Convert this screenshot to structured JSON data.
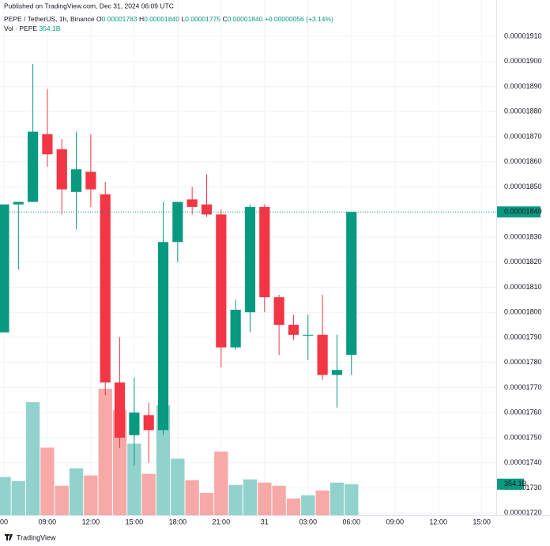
{
  "header": {
    "published": "Published on TradingView.com, Dec 31, 2024 06:09 UTC"
  },
  "footer": {
    "brand": "TradingView"
  },
  "chart_data": {
    "type": "candlestick",
    "legend": {
      "symbol": "PEPE / TetherUS, 1h, Binance",
      "ohlc": [
        {
          "label": "O",
          "value": "0.00001783"
        },
        {
          "label": "H",
          "value": "0.00001840"
        },
        {
          "label": "L",
          "value": "0.00001775"
        },
        {
          "label": "C",
          "value": "0.00001840"
        }
      ],
      "change": "+0.00000056 (+3.14%)",
      "volume_name": "Vol · PEPE",
      "volume_value": "354.1B"
    },
    "x": [
      6,
      7,
      8,
      9,
      10,
      11,
      12,
      13,
      14,
      15,
      16,
      17,
      18,
      19,
      20,
      21,
      22,
      23,
      24,
      25,
      26,
      27,
      28,
      29,
      30
    ],
    "open": [
      1.792e-05,
      1.843e-05,
      1.844e-05,
      1.871e-05,
      1.865e-05,
      1.848e-05,
      1.856e-05,
      1.847e-05,
      1.772e-05,
      1.751e-05,
      1.759e-05,
      1.753e-05,
      1.828e-05,
      1.845e-05,
      1.843e-05,
      1.839e-05,
      1.786e-05,
      1.8e-05,
      1.842e-05,
      1.806e-05,
      1.795e-05,
      1.791e-05,
      1.791e-05,
      1.775e-05,
      1.783e-05
    ],
    "high": [
      1.843e-05,
      1.844e-05,
      1.899e-05,
      1.889e-05,
      1.869e-05,
      1.872e-05,
      1.871e-05,
      1.852e-05,
      1.79e-05,
      1.774e-05,
      1.764e-05,
      1.844e-05,
      1.844e-05,
      1.85e-05,
      1.855e-05,
      1.841e-05,
      1.805e-05,
      1.843e-05,
      1.843e-05,
      1.807e-05,
      1.799e-05,
      1.799e-05,
      1.807e-05,
      1.791e-05,
      1.84e-05
    ],
    "low": [
      1.792e-05,
      1.817e-05,
      1.844e-05,
      1.858e-05,
      1.839e-05,
      1.833e-05,
      1.842e-05,
      1.767e-05,
      1.746e-05,
      1.739e-05,
      1.74e-05,
      1.751e-05,
      1.82e-05,
      1.839e-05,
      1.838e-05,
      1.778e-05,
      1.785e-05,
      1.792e-05,
      1.8e-05,
      1.783e-05,
      1.789e-05,
      1.781e-05,
      1.773e-05,
      1.762e-05,
      1.775e-05
    ],
    "close": [
      1.843e-05,
      1.844e-05,
      1.872e-05,
      1.863e-05,
      1.849e-05,
      1.857e-05,
      1.849e-05,
      1.772e-05,
      1.75e-05,
      1.76e-05,
      1.753e-05,
      1.828e-05,
      1.844e-05,
      1.842e-05,
      1.839e-05,
      1.786e-05,
      1.801e-05,
      1.842e-05,
      1.806e-05,
      1.795e-05,
      1.791e-05,
      1.791e-05,
      1.775e-05,
      1.777e-05,
      1.84e-05
    ],
    "volume": [
      436,
      390,
      1290,
      772,
      336,
      536,
      454,
      1444,
      1199,
      817,
      472,
      1253,
      645,
      400,
      254,
      726,
      345,
      409,
      372,
      336,
      191,
      227,
      282,
      372,
      354.1
    ],
    "up_color": "#089981",
    "down_color": "#f23645",
    "volume_up_color": "#92d2cc",
    "volume_down_color": "#f7a9a7",
    "last_price": 1.84e-05,
    "last_price_label": "0.00001840",
    "xlim": [
      5.73,
      40
    ],
    "xticks": [
      {
        "value": 6,
        "label": "00"
      },
      {
        "value": 9,
        "label": "09:00"
      },
      {
        "value": 12,
        "label": "12:00"
      },
      {
        "value": 15,
        "label": "15:00"
      },
      {
        "value": 18,
        "label": "18:00"
      },
      {
        "value": 21,
        "label": "21:00"
      },
      {
        "value": 24,
        "label": "31"
      },
      {
        "value": 27,
        "label": "03:00"
      },
      {
        "value": 30,
        "label": "06:00"
      },
      {
        "value": 33,
        "label": "09:00"
      },
      {
        "value": 36,
        "label": "12:00"
      },
      {
        "value": 39,
        "label": "15:00"
      }
    ],
    "ylim": [
      1.7191e-05,
      1.9245e-05
    ],
    "yticks": [
      {
        "value": 1.91e-05,
        "label": "0.00001910"
      },
      {
        "value": 1.9e-05,
        "label": "0.00001900"
      },
      {
        "value": 1.89e-05,
        "label": "0.00001890"
      },
      {
        "value": 1.88e-05,
        "label": "0.00001880"
      },
      {
        "value": 1.87e-05,
        "label": "0.00001870"
      },
      {
        "value": 1.86e-05,
        "label": "0.00001860"
      },
      {
        "value": 1.85e-05,
        "label": "0.00001850"
      },
      {
        "value": 1.84e-05,
        "label": "0.00001840"
      },
      {
        "value": 1.83e-05,
        "label": "0.00001830"
      },
      {
        "value": 1.82e-05,
        "label": "0.00001820"
      },
      {
        "value": 1.81e-05,
        "label": "0.00001810"
      },
      {
        "value": 1.8e-05,
        "label": "0.00001800"
      },
      {
        "value": 1.79e-05,
        "label": "0.00001790"
      },
      {
        "value": 1.78e-05,
        "label": "0.00001780"
      },
      {
        "value": 1.77e-05,
        "label": "0.00001770"
      },
      {
        "value": 1.76e-05,
        "label": "0.00001760"
      },
      {
        "value": 1.75e-05,
        "label": "0.00001750"
      },
      {
        "value": 1.74e-05,
        "label": "0.00001740"
      },
      {
        "value": 1.73e-05,
        "label": "0.00001730"
      },
      {
        "value": 1.72e-05,
        "label": "0.00001720"
      }
    ],
    "grid": true
  }
}
